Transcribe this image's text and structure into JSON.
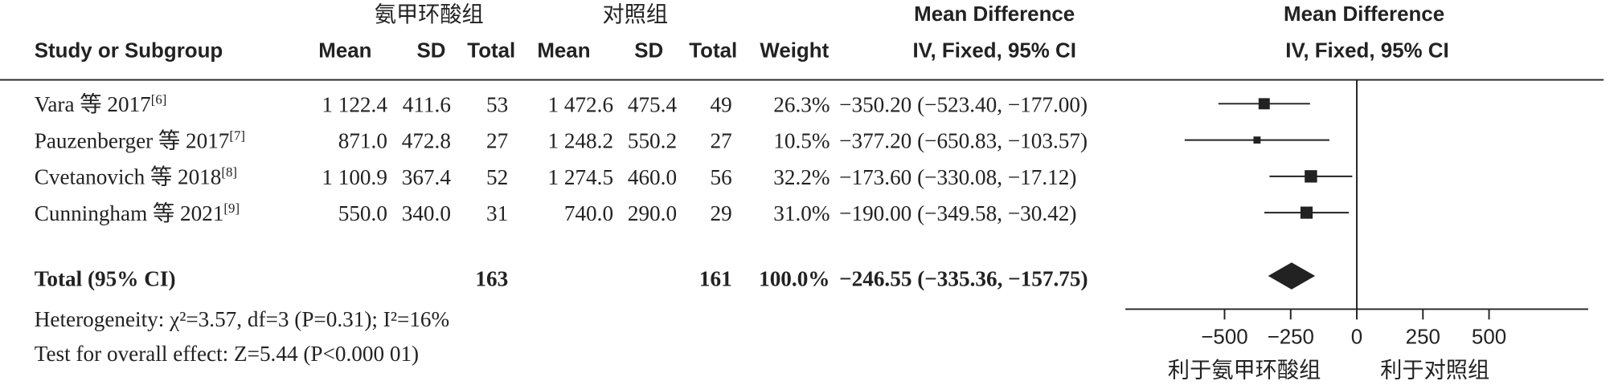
{
  "chart_data": {
    "type": "forest",
    "group_headers": [
      "氨甲环酸组",
      "对照组",
      "Mean Difference"
    ],
    "col_headers": [
      "Study or Subgroup",
      "Mean",
      "SD",
      "Total",
      "Mean",
      "SD",
      "Total",
      "Weight",
      "IV, Fixed, 95% CI"
    ],
    "plot_headers": [
      "Mean Difference",
      "IV, Fixed, 95% CI"
    ],
    "rows": [
      [
        "Vara 等 2017",
        "1 122.4",
        "411.6",
        "53",
        "1 472.6",
        "475.4",
        "49",
        "26.3%",
        "−350.20 (−523.40, −177.00)"
      ],
      [
        "Pauzenberger 等 2017",
        "871.0",
        "472.8",
        "27",
        "1 248.2",
        "550.2",
        "27",
        "10.5%",
        "−377.20 (−650.83, −103.57)"
      ],
      [
        "Cvetanovich 等 2018",
        "1 100.9",
        "367.4",
        "52",
        "1 274.5",
        "460.0",
        "56",
        "32.2%",
        "−173.60 (−330.08, −17.12)"
      ],
      [
        "Cunningham 等 2021",
        "550.0",
        "340.0",
        "31",
        "740.0",
        "290.0",
        "29",
        "31.0%",
        "−190.00 (−349.58, −30.42)"
      ]
    ],
    "refs": [
      "[6]",
      "[7]",
      "[8]",
      "[9]"
    ],
    "values": [
      -350.2,
      -377.2,
      -173.6,
      -190.0
    ],
    "ci_low": [
      -523.4,
      -650.83,
      -330.08,
      -349.58
    ],
    "ci_high": [
      -177.0,
      -103.57,
      -17.12,
      -30.42
    ],
    "weights": [
      26.3,
      10.5,
      32.2,
      31.0
    ],
    "total": {
      "label": "Total (95% CI)",
      "exp_total": "163",
      "ctrl_total": "161",
      "weight": "100.0%",
      "ci_text": "−246.55 (−335.36, −157.75)",
      "value": -246.55,
      "ci_low": -335.36,
      "ci_high": -157.75
    },
    "heterogeneity": "Heterogeneity: χ²=3.57, df=3 (P=0.31); I²=16%",
    "overall_effect": "Test for overall effect: Z=5.44 (P<0.000 01)",
    "xlim": [
      -875,
      875
    ],
    "xticks": [
      {
        "value": -500,
        "label": "−500"
      },
      {
        "value": -250,
        "label": "−250"
      },
      0,
      250,
      500
    ],
    "favours": [
      "利于氨甲环酸组",
      "利于对照组"
    ],
    "color": "#222222"
  }
}
